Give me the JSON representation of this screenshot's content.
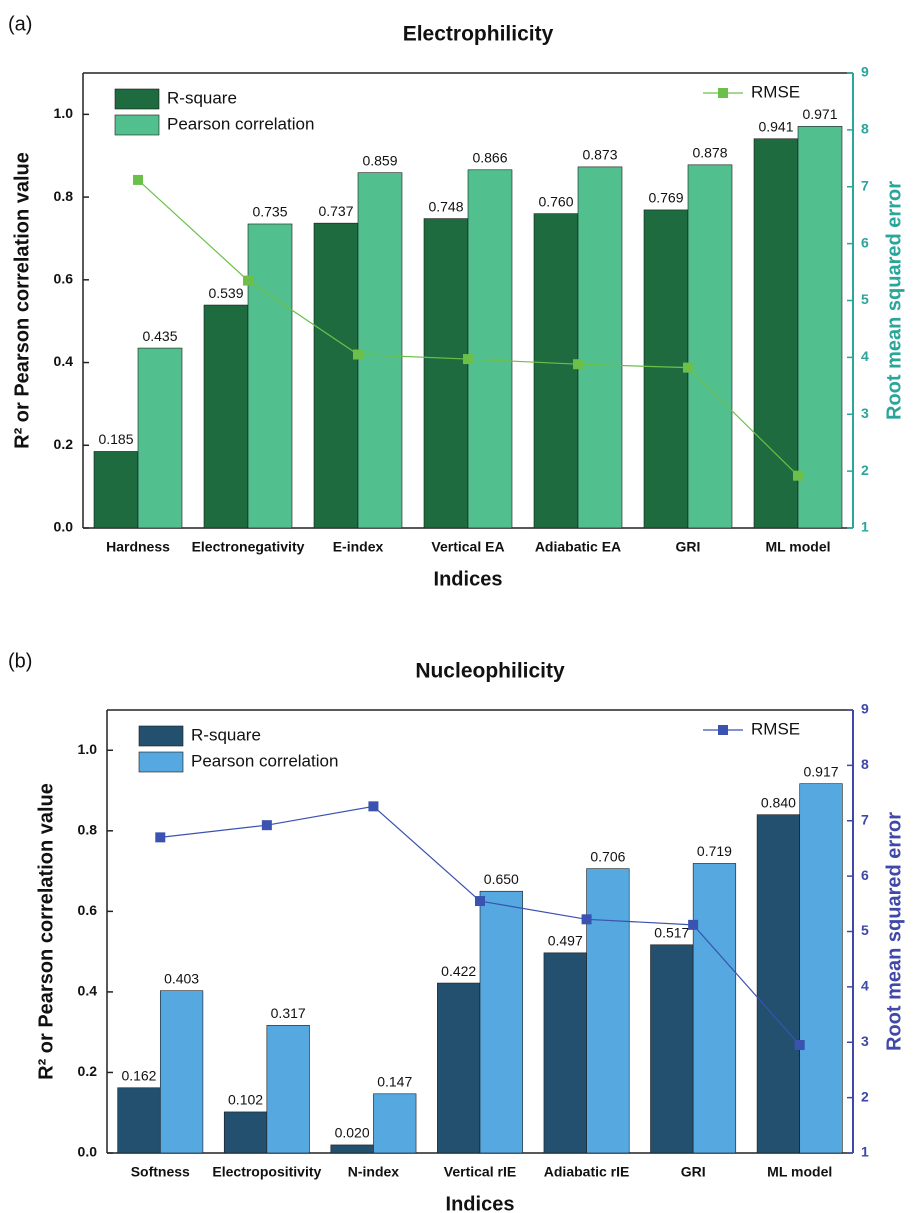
{
  "chart_data": [
    {
      "type": "bar",
      "panel_label": "(a)",
      "title": "Electrophilicity",
      "x_label": "Indices",
      "y_label": "R² or Pearson correlation value",
      "y2_label": "Root mean squared error",
      "y2_color": "#2aa59a",
      "categories": [
        "Hardness",
        "Electronegativity",
        "E-index",
        "Vertical EA",
        "Adiabatic EA",
        "GRI",
        "ML model"
      ],
      "series": [
        {
          "name": "R-square",
          "color": "#1e6b3f",
          "values": [
            0.185,
            0.539,
            0.737,
            0.748,
            0.76,
            0.769,
            0.941
          ],
          "value_labels": [
            "0.185",
            "0.539",
            "0.737",
            "0.748",
            "0.760",
            "0.769",
            "0.941"
          ]
        },
        {
          "name": "Pearson correlation",
          "color": "#52c08e",
          "values": [
            0.435,
            0.735,
            0.859,
            0.866,
            0.873,
            0.878,
            0.971
          ],
          "value_labels": [
            "0.435",
            "0.735",
            "0.859",
            "0.866",
            "0.873",
            "0.878",
            "0.971"
          ]
        },
        {
          "name": "RMSE",
          "type": "line",
          "axis": "y2",
          "color": "#6cc04a",
          "values": [
            7.12,
            5.35,
            4.05,
            3.97,
            3.88,
            3.82,
            1.92
          ]
        }
      ],
      "ylim": [
        0,
        1.1
      ],
      "yticks": [
        {
          "value": 0,
          "label": "0.0"
        },
        0.2,
        0.4,
        0.6,
        0.8,
        {
          "value": 1,
          "label": "1.0"
        }
      ],
      "y2lim": [
        1,
        9
      ],
      "y2ticks": [
        1,
        2,
        3,
        4,
        5,
        6,
        7,
        8,
        9
      ]
    },
    {
      "type": "bar",
      "panel_label": "(b)",
      "title": "Nucleophilicity",
      "x_label": "Indices",
      "y_label": "R² or Pearson correlation value",
      "y2_label": "Root mean squared error",
      "y2_color": "#3f48a8",
      "categories": [
        "Softness",
        "Electropositivity",
        "N-index",
        "Vertical rIE",
        "Adiabatic rIE",
        "GRI",
        "ML model"
      ],
      "series": [
        {
          "name": "R-square",
          "color": "#23506f",
          "values": [
            0.162,
            0.102,
            0.02,
            0.422,
            0.497,
            0.517,
            0.84
          ],
          "value_labels": [
            "0.162",
            "0.102",
            "0.020",
            "0.422",
            "0.497",
            "0.517",
            "0.840"
          ]
        },
        {
          "name": "Pearson correlation",
          "color": "#55a8e0",
          "values": [
            0.403,
            0.317,
            0.147,
            0.65,
            0.706,
            0.719,
            0.917
          ],
          "value_labels": [
            "0.403",
            "0.317",
            "0.147",
            "0.650",
            "0.706",
            "0.719",
            "0.917"
          ]
        },
        {
          "name": "RMSE",
          "type": "line",
          "axis": "y2",
          "color": "#3a52b0",
          "values": [
            6.7,
            6.92,
            7.26,
            5.55,
            5.22,
            5.12,
            2.95
          ]
        }
      ],
      "ylim": [
        0,
        1.1
      ],
      "yticks": [
        {
          "value": 0,
          "label": "0.0"
        },
        0.2,
        0.4,
        0.6,
        0.8,
        {
          "value": 1,
          "label": "1.0"
        }
      ],
      "y2lim": [
        1,
        9
      ],
      "y2ticks": [
        1,
        2,
        3,
        4,
        5,
        6,
        7,
        8,
        9
      ]
    }
  ]
}
